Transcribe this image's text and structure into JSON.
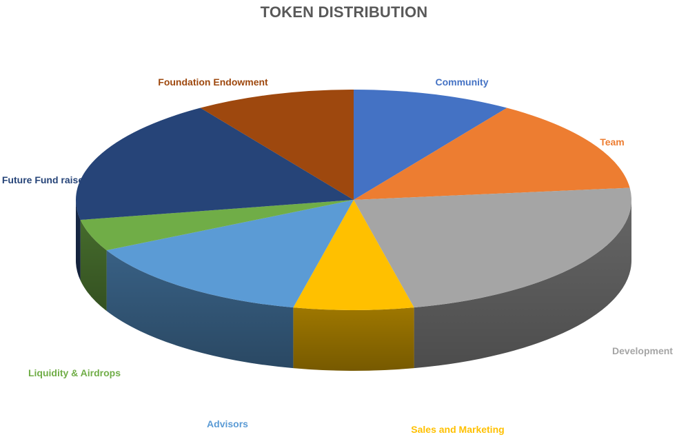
{
  "chart_data": {
    "type": "pie",
    "title": "TOKEN DISTRIBUTION",
    "categories": [
      "Community",
      "Team",
      "Development",
      "Sales and Marketing",
      "Advisors",
      "Liquidity & Airdrops",
      "Future Fund raise",
      "Foundation Endowment"
    ],
    "values": [
      10,
      15,
      25,
      7.5,
      15,
      5,
      20,
      10
    ],
    "colors": [
      "#4472C4",
      "#ED7D31",
      "#A5A5A5",
      "#FFC000",
      "#5B9BD5",
      "#70AD47",
      "#264478",
      "#9E480E"
    ],
    "label_colors": [
      "#4472C4",
      "#ED7D31",
      "#A5A5A5",
      "#FFC000",
      "#5B9BD5",
      "#70AD47",
      "#264478",
      "#9E480E"
    ],
    "legend": "none",
    "style": "3d"
  }
}
